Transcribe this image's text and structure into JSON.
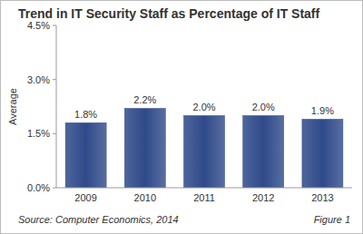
{
  "chart_data": {
    "type": "bar",
    "title": "Trend in IT Security Staff as Percentage of IT Staff",
    "y_label": "Average",
    "categories": [
      "2009",
      "2010",
      "2011",
      "2012",
      "2013"
    ],
    "values": [
      1.8,
      2.2,
      2.0,
      2.0,
      1.9
    ],
    "value_labels": [
      "1.8%",
      "2.2%",
      "2.0%",
      "2.0%",
      "1.9%"
    ],
    "color": "#2f4a8a",
    "ylim": [
      0,
      4.5
    ],
    "yticks": [
      {
        "value": 0,
        "label": "0.0%"
      },
      {
        "value": 1.5,
        "label": "1.5%"
      },
      {
        "value": 3,
        "label": "3.0%"
      },
      {
        "value": 4.5,
        "label": "4.5%"
      }
    ],
    "grid": false,
    "data_labels": true,
    "source": "Source: Computer Economics, 2014",
    "figure_label": "Figure 1"
  }
}
